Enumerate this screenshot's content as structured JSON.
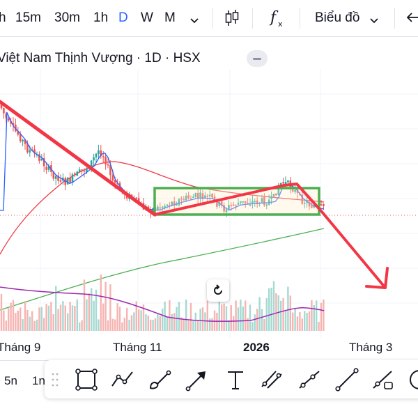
{
  "toolbar": {
    "intervals": [
      "h",
      "15m",
      "30m",
      "1h",
      "D",
      "W",
      "M"
    ],
    "active_interval": "D",
    "chart_type_icon": "candles-icon",
    "indicators_icon": "fx-icon",
    "chart_menu_label": "Biểu đồ",
    "undo_icon": "arrow-left-icon"
  },
  "symbol_title": "Việt Nam Thịnh Vượng · 1D · HSX",
  "reset_icon": "reset-rotate-icon",
  "x_axis_labels": [
    {
      "text": "Tháng 9",
      "bold": false
    },
    {
      "text": "Tháng 11",
      "bold": false
    },
    {
      "text": "2026",
      "bold": true
    },
    {
      "text": "Tháng 3",
      "bold": false
    }
  ],
  "range_bar": {
    "items": [
      "5n",
      "1n"
    ]
  },
  "drawing_tools": [
    "rectangle-icon",
    "trend-angle-icon",
    "brush-icon",
    "arrow-icon",
    "text-icon",
    "parallel-channel-icon",
    "ray-icon",
    "trend-line-icon",
    "extended-line-icon",
    "circle-icon"
  ],
  "colors": {
    "up": "#26a69a",
    "down": "#ef5350",
    "annotation_red": "#f23645",
    "box_green": "#4caf50",
    "ma_blue": "#2962ff",
    "ma_red": "#f23645",
    "ma_green": "#4caf50",
    "volume_ma": "#9c27b0",
    "accent": "#2962ff"
  },
  "chart_data": {
    "type": "candlestick",
    "title": "Việt Nam Thịnh Vượng · 1D · HSX",
    "exchange": "HSX",
    "interval": "1D",
    "x_tick_labels": [
      "Tháng 9",
      "Tháng 11",
      "2026",
      "Tháng 3"
    ],
    "y_scale_values_visible": false,
    "trend": "downtrend then sideways range, breakdown projected",
    "series": [
      {
        "type": "moving_average",
        "color": "#2962ff",
        "description": "short MA tracking price"
      },
      {
        "type": "moving_average",
        "color": "#f23645",
        "description": "medium MA rising then flattening"
      },
      {
        "type": "moving_average",
        "color": "#4caf50",
        "description": "long MA rising steadily"
      },
      {
        "type": "volume",
        "colors": [
          "#26a69a",
          "#ef5350"
        ]
      },
      {
        "type": "volume_moving_average",
        "color": "#9c27b0"
      }
    ],
    "annotations": [
      {
        "type": "trend_line",
        "color": "#f23645",
        "description": "downtrend line from top-left to range bottom"
      },
      {
        "type": "rectangle",
        "color": "#4caf50",
        "description": "sideways accumulation box"
      },
      {
        "type": "zigzag",
        "color": "#f23645",
        "description": "swing line inside range"
      },
      {
        "type": "arrow",
        "color": "#f23645",
        "description": "projected breakdown arrow pointing down-right"
      },
      {
        "type": "horizontal_line",
        "style": "dotted",
        "color": "#ef5350",
        "description": "last price line"
      }
    ]
  }
}
